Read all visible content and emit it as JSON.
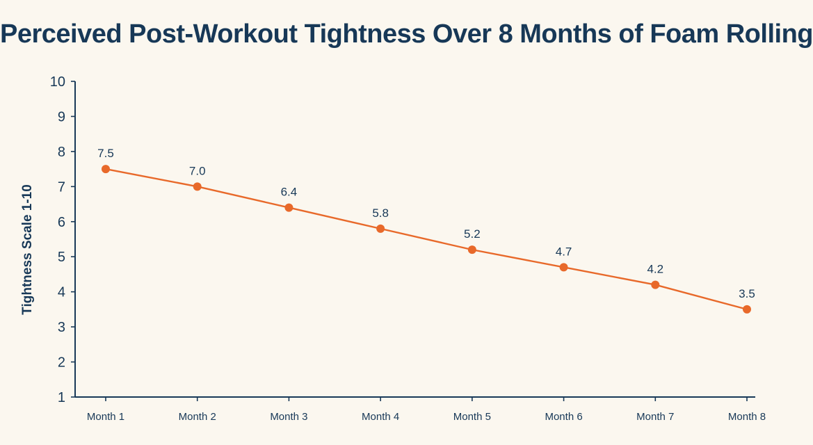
{
  "chart_data": {
    "type": "line",
    "title": "Perceived Post-Workout Tightness Over 8 Months of Foam Rolling",
    "xlabel": "",
    "ylabel": "Tightness Scale 1-10",
    "categories": [
      "Month 1",
      "Month 2",
      "Month 3",
      "Month 4",
      "Month 5",
      "Month 6",
      "Month 7",
      "Month 8"
    ],
    "series": [
      {
        "values": [
          7.5,
          7.0,
          6.4,
          5.8,
          5.2,
          4.7,
          4.2,
          3.5
        ],
        "labels": [
          "7.5",
          "7.0",
          "6.4",
          "5.8",
          "5.2",
          "4.7",
          "4.2",
          "3.5"
        ]
      }
    ],
    "ylim": [
      1,
      10
    ],
    "yticks": [
      "1",
      "2",
      "3",
      "4",
      "5",
      "6",
      "7",
      "8",
      "9",
      "10"
    ],
    "grid": false,
    "legend": "none",
    "colors": {
      "line": "#e8692a",
      "marker": "#e8692a",
      "text": "#173857",
      "background": "#fbf7ef"
    }
  }
}
